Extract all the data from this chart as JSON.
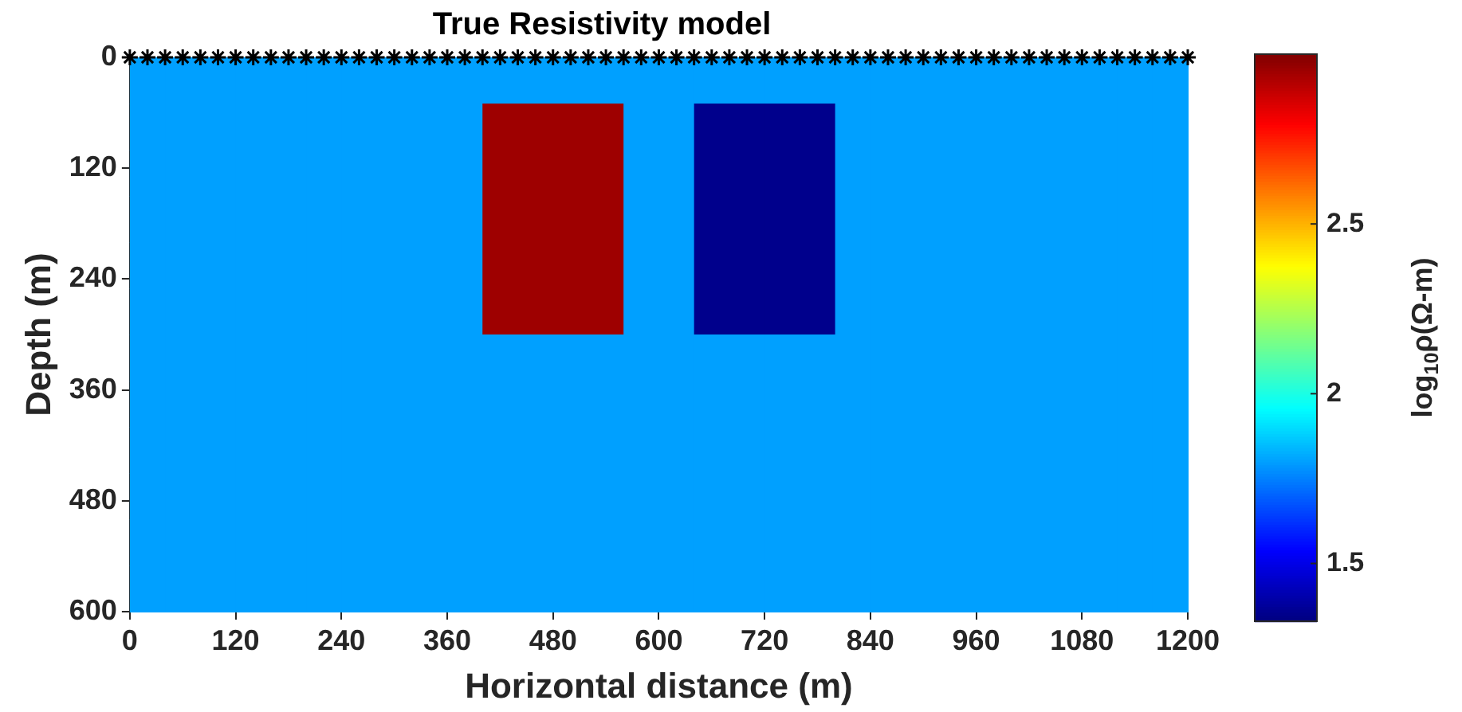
{
  "chart_data": {
    "type": "heatmap",
    "title": "True Resistivity model",
    "xlabel": "Horizontal distance (m)",
    "ylabel": "Depth (m)",
    "clabel": "log$_{10}$ρ(Ω-m)",
    "x": [
      20,
      60,
      100,
      140,
      180,
      220,
      260,
      300,
      340,
      380,
      420,
      460,
      500,
      540,
      580,
      620,
      660,
      700,
      740,
      780,
      820,
      860,
      900,
      940,
      980,
      1020,
      1060,
      1100,
      1140,
      1180
    ],
    "y": [
      25,
      75,
      125,
      175,
      225,
      275,
      325,
      375,
      425,
      475,
      525,
      575
    ],
    "cells": [
      [
        1.8,
        1.8,
        1.8,
        1.8,
        1.8,
        1.8,
        1.8,
        1.8,
        1.8,
        1.8,
        1.8,
        1.8,
        1.8,
        1.8,
        1.8,
        1.8,
        1.8,
        1.8,
        1.8,
        1.8,
        1.8,
        1.8,
        1.8,
        1.8,
        1.8,
        1.8,
        1.8,
        1.8,
        1.8,
        1.8
      ],
      [
        1.8,
        1.8,
        1.8,
        1.8,
        1.8,
        1.8,
        1.8,
        1.8,
        1.8,
        1.8,
        2.95,
        2.95,
        2.95,
        2.95,
        1.8,
        1.8,
        1.35,
        1.35,
        1.35,
        1.35,
        1.8,
        1.8,
        1.8,
        1.8,
        1.8,
        1.8,
        1.8,
        1.8,
        1.8,
        1.8
      ],
      [
        1.8,
        1.8,
        1.8,
        1.8,
        1.8,
        1.8,
        1.8,
        1.8,
        1.8,
        1.8,
        2.95,
        2.95,
        2.95,
        2.95,
        1.8,
        1.8,
        1.35,
        1.35,
        1.35,
        1.35,
        1.8,
        1.8,
        1.8,
        1.8,
        1.8,
        1.8,
        1.8,
        1.8,
        1.8,
        1.8
      ],
      [
        1.8,
        1.8,
        1.8,
        1.8,
        1.8,
        1.8,
        1.8,
        1.8,
        1.8,
        1.8,
        2.95,
        2.95,
        2.95,
        2.95,
        1.8,
        1.8,
        1.35,
        1.35,
        1.35,
        1.35,
        1.8,
        1.8,
        1.8,
        1.8,
        1.8,
        1.8,
        1.8,
        1.8,
        1.8,
        1.8
      ],
      [
        1.8,
        1.8,
        1.8,
        1.8,
        1.8,
        1.8,
        1.8,
        1.8,
        1.8,
        1.8,
        2.95,
        2.95,
        2.95,
        2.95,
        1.8,
        1.8,
        1.35,
        1.35,
        1.35,
        1.35,
        1.8,
        1.8,
        1.8,
        1.8,
        1.8,
        1.8,
        1.8,
        1.8,
        1.8,
        1.8
      ],
      [
        1.8,
        1.8,
        1.8,
        1.8,
        1.8,
        1.8,
        1.8,
        1.8,
        1.8,
        1.8,
        2.95,
        2.95,
        2.95,
        2.95,
        1.8,
        1.8,
        1.35,
        1.35,
        1.35,
        1.35,
        1.8,
        1.8,
        1.8,
        1.8,
        1.8,
        1.8,
        1.8,
        1.8,
        1.8,
        1.8
      ],
      [
        1.8,
        1.8,
        1.8,
        1.8,
        1.8,
        1.8,
        1.8,
        1.8,
        1.8,
        1.8,
        1.8,
        1.8,
        1.8,
        1.8,
        1.8,
        1.8,
        1.8,
        1.8,
        1.8,
        1.8,
        1.8,
        1.8,
        1.8,
        1.8,
        1.8,
        1.8,
        1.8,
        1.8,
        1.8,
        1.8
      ],
      [
        1.8,
        1.8,
        1.8,
        1.8,
        1.8,
        1.8,
        1.8,
        1.8,
        1.8,
        1.8,
        1.8,
        1.8,
        1.8,
        1.8,
        1.8,
        1.8,
        1.8,
        1.8,
        1.8,
        1.8,
        1.8,
        1.8,
        1.8,
        1.8,
        1.8,
        1.8,
        1.8,
        1.8,
        1.8,
        1.8
      ],
      [
        1.8,
        1.8,
        1.8,
        1.8,
        1.8,
        1.8,
        1.8,
        1.8,
        1.8,
        1.8,
        1.8,
        1.8,
        1.8,
        1.8,
        1.8,
        1.8,
        1.8,
        1.8,
        1.8,
        1.8,
        1.8,
        1.8,
        1.8,
        1.8,
        1.8,
        1.8,
        1.8,
        1.8,
        1.8,
        1.8
      ],
      [
        1.8,
        1.8,
        1.8,
        1.8,
        1.8,
        1.8,
        1.8,
        1.8,
        1.8,
        1.8,
        1.8,
        1.8,
        1.8,
        1.8,
        1.8,
        1.8,
        1.8,
        1.8,
        1.8,
        1.8,
        1.8,
        1.8,
        1.8,
        1.8,
        1.8,
        1.8,
        1.8,
        1.8,
        1.8,
        1.8
      ],
      [
        1.8,
        1.8,
        1.8,
        1.8,
        1.8,
        1.8,
        1.8,
        1.8,
        1.8,
        1.8,
        1.8,
        1.8,
        1.8,
        1.8,
        1.8,
        1.8,
        1.8,
        1.8,
        1.8,
        1.8,
        1.8,
        1.8,
        1.8,
        1.8,
        1.8,
        1.8,
        1.8,
        1.8,
        1.8,
        1.8
      ],
      [
        1.8,
        1.8,
        1.8,
        1.8,
        1.8,
        1.8,
        1.8,
        1.8,
        1.8,
        1.8,
        1.8,
        1.8,
        1.8,
        1.8,
        1.8,
        1.8,
        1.8,
        1.8,
        1.8,
        1.8,
        1.8,
        1.8,
        1.8,
        1.8,
        1.8,
        1.8,
        1.8,
        1.8,
        1.8,
        1.8
      ]
    ],
    "xlim": [
      0,
      1200
    ],
    "xticks": [
      0,
      120,
      240,
      360,
      480,
      600,
      720,
      840,
      960,
      1080,
      1200
    ],
    "ylim": [
      600,
      0
    ],
    "yticks": [
      0,
      120,
      240,
      360,
      480,
      600
    ],
    "clim": [
      1.33,
      3
    ],
    "cticks": [
      1.5,
      2,
      2.5
    ],
    "series": [
      {
        "type": "scatter",
        "color": "#000000",
        "x": [
          0,
          20,
          40,
          60,
          80,
          100,
          120,
          140,
          160,
          180,
          200,
          220,
          240,
          260,
          280,
          300,
          320,
          340,
          360,
          380,
          400,
          420,
          440,
          460,
          480,
          500,
          520,
          540,
          560,
          580,
          600,
          620,
          640,
          660,
          680,
          700,
          720,
          740,
          760,
          780,
          800,
          820,
          840,
          860,
          880,
          900,
          920,
          940,
          960,
          980,
          1000,
          1020,
          1040,
          1060,
          1080,
          1100,
          1120,
          1140,
          1160,
          1180,
          1200
        ],
        "values": [
          0,
          0,
          0,
          0,
          0,
          0,
          0,
          0,
          0,
          0,
          0,
          0,
          0,
          0,
          0,
          0,
          0,
          0,
          0,
          0,
          0,
          0,
          0,
          0,
          0,
          0,
          0,
          0,
          0,
          0,
          0,
          0,
          0,
          0,
          0,
          0,
          0,
          0,
          0,
          0,
          0,
          0,
          0,
          0,
          0,
          0,
          0,
          0,
          0,
          0,
          0,
          0,
          0,
          0,
          0,
          0,
          0,
          0,
          0,
          0,
          0
        ]
      }
    ],
    "marker": "cross",
    "grid": false,
    "legend": false
  }
}
